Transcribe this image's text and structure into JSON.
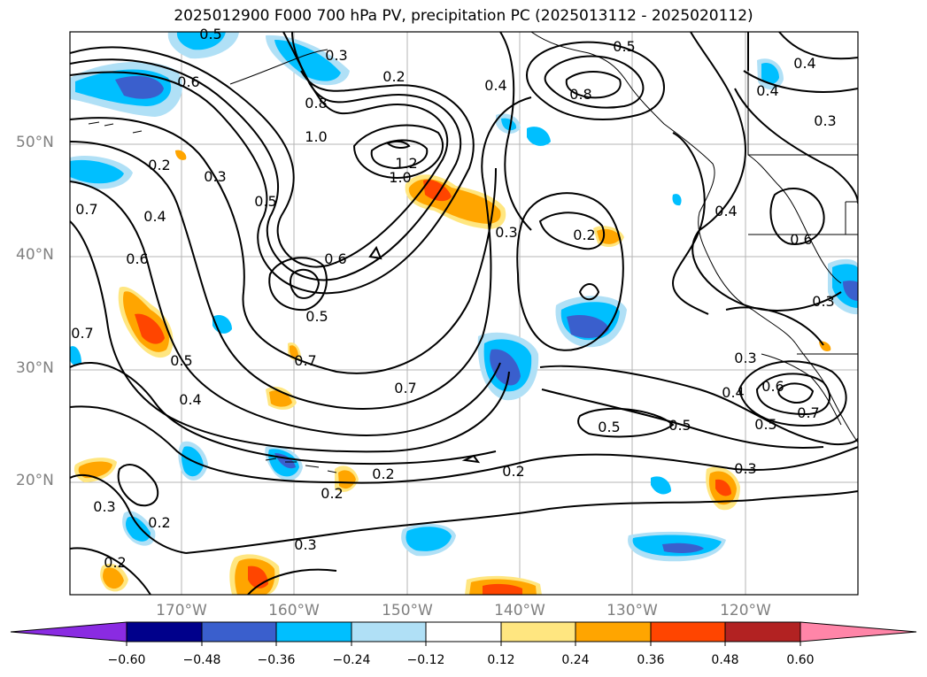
{
  "title": "2025012900 F000 700 hPa PV, precipitation PC (2025013112 - 2025020112)",
  "lat_labels": [
    "50°N",
    "40°N",
    "30°N",
    "20°N"
  ],
  "lon_labels": [
    "170°W",
    "160°W",
    "150°W",
    "140°W",
    "130°W",
    "120°W"
  ],
  "colorbar": {
    "colors": [
      "#8a2be2",
      "#00008b",
      "#3a5fcd",
      "#00bfff",
      "#b0e0f6",
      "#ffffff",
      "#ffe680",
      "#ffa500",
      "#ff4500",
      "#b22222",
      "#ff85a8"
    ],
    "tick_labels": [
      "−0.60",
      "−0.48",
      "−0.36",
      "−0.24",
      "−0.12",
      "0.12",
      "0.24",
      "0.36",
      "0.48",
      "0.60"
    ]
  },
  "contour_labels": [
    {
      "text": "0.5"
    },
    {
      "text": "0.6"
    },
    {
      "text": "0.8"
    },
    {
      "text": "1.0"
    },
    {
      "text": "0.2"
    },
    {
      "text": "0.3"
    },
    {
      "text": "0.5"
    },
    {
      "text": "0.4"
    },
    {
      "text": "0.6"
    },
    {
      "text": "0.7"
    },
    {
      "text": "0.2"
    },
    {
      "text": "0.4"
    },
    {
      "text": "0.3"
    },
    {
      "text": "0.8"
    },
    {
      "text": "0.4"
    },
    {
      "text": "0.5"
    },
    {
      "text": "1.2"
    },
    {
      "text": "1.0"
    },
    {
      "text": "0.3"
    },
    {
      "text": "0.2"
    },
    {
      "text": "0.6"
    },
    {
      "text": "0.5"
    },
    {
      "text": "0.4"
    },
    {
      "text": "0.6"
    },
    {
      "text": "0.7"
    },
    {
      "text": "0.5"
    },
    {
      "text": "0.4"
    },
    {
      "text": "0.7"
    },
    {
      "text": "0.7"
    },
    {
      "text": "0.5"
    },
    {
      "text": "0.5"
    },
    {
      "text": "0.3"
    },
    {
      "text": "0.4"
    },
    {
      "text": "0.6"
    },
    {
      "text": "0.7"
    },
    {
      "text": "0.5"
    },
    {
      "text": "0.3"
    },
    {
      "text": "0.2"
    },
    {
      "text": "0.2"
    },
    {
      "text": "0.2"
    },
    {
      "text": "0.3"
    },
    {
      "text": "0.2"
    },
    {
      "text": "0.3"
    },
    {
      "text": "0.2"
    },
    {
      "text": "0.3"
    },
    {
      "text": "0.4"
    },
    {
      "text": "0.3"
    }
  ]
}
